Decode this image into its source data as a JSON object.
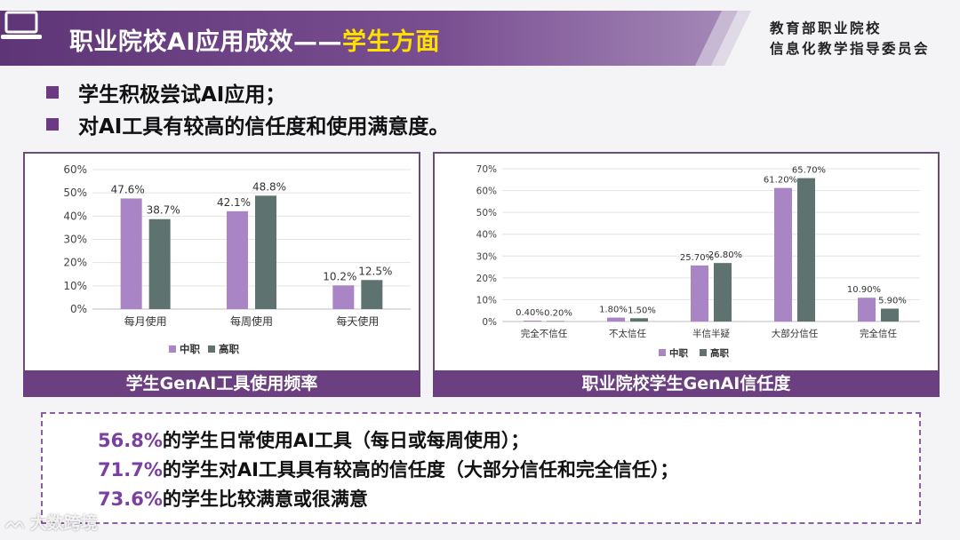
{
  "header": {
    "title_main": "职业院校AI应用成效——",
    "title_highlight": "学生方面",
    "org_line1": "教育部职业院校",
    "org_line2": "信息化教学指导委员会"
  },
  "bullets": [
    "学生积极尝试AI应用；",
    "对AI工具有较高的信任度和使用满意度。"
  ],
  "chart_data": [
    {
      "type": "bar",
      "title": "学生GenAI工具使用频率",
      "categories": [
        "每月使用",
        "每周使用",
        "每天使用"
      ],
      "series": [
        {
          "name": "中职",
          "values": [
            47.6,
            42.1,
            10.2
          ],
          "labels": [
            "47.6%",
            "42.1%",
            "10.2%"
          ],
          "color": "#a985c6"
        },
        {
          "name": "高职",
          "values": [
            38.7,
            48.8,
            12.5
          ],
          "labels": [
            "38.7%",
            "48.8%",
            "12.5%"
          ],
          "color": "#5e7370"
        }
      ],
      "ylim": [
        0,
        60
      ],
      "yticks": [
        "0%",
        "10%",
        "20%",
        "30%",
        "40%",
        "50%",
        "60%"
      ],
      "grid": true,
      "legend": "bottom"
    },
    {
      "type": "bar",
      "title": "职业院校学生GenAI信任度",
      "categories": [
        "完全不信任",
        "不太信任",
        "半信半疑",
        "大部分信任",
        "完全信任"
      ],
      "series": [
        {
          "name": "中职",
          "values": [
            0.4,
            1.8,
            25.7,
            61.2,
            10.9
          ],
          "labels": [
            "0.40%",
            "1.80%",
            "25.70%",
            "61.20%",
            "10.90%"
          ],
          "color": "#a985c6"
        },
        {
          "name": "高职",
          "values": [
            0.2,
            1.5,
            26.8,
            65.7,
            5.9
          ],
          "labels": [
            "0.20%",
            "1.50%",
            "26.80%",
            "65.70%",
            "5.90%"
          ],
          "color": "#5e7370"
        }
      ],
      "ylim": [
        0,
        70
      ],
      "yticks": [
        "0%",
        "10%",
        "20%",
        "30%",
        "40%",
        "50%",
        "60%",
        "70%"
      ],
      "grid": true,
      "legend": "bottom"
    }
  ],
  "summary": [
    {
      "pct": "56.8%",
      "text": "的学生日常使用AI工具（每日或每周使用）；"
    },
    {
      "pct": "71.7%",
      "text": "的学生对AI工具具有较高的信任度（大部分信任和完全信任）；"
    },
    {
      "pct": "73.6%",
      "text": "的学生比较满意或很满意"
    }
  ],
  "watermark": "大数跨境"
}
